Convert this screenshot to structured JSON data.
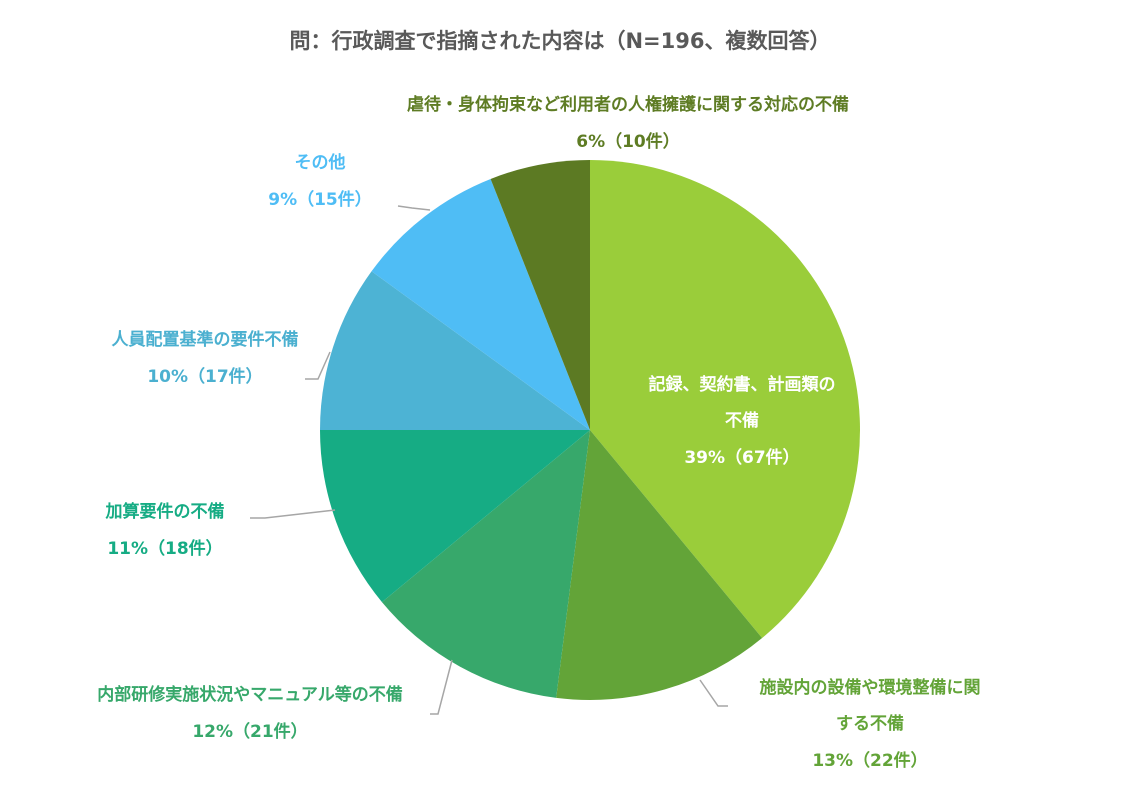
{
  "chart_data": {
    "type": "pie",
    "title": "問：行政調査で指摘された内容は（N=196、複数回答）",
    "categories": [
      "記録、契約書、計画類の不備",
      "施設内の設備や環境整備に関する不備",
      "内部研修実施状況やマニュアル等の不備",
      "加算要件の不備",
      "人員配置基準の要件不備",
      "その他",
      "虐待・身体拘束など利用者の人権擁護に関する対応の不備"
    ],
    "values": [
      39,
      13,
      12,
      11,
      10,
      9,
      6
    ],
    "value_labels": [
      "39%（67件）",
      "13%（22件）",
      "12%（21件）",
      "11%（18件）",
      "10%（17件）",
      "9%（15件）",
      "6%（10件）"
    ],
    "colors": [
      "#9acd3a",
      "#63a438",
      "#37a86b",
      "#16ac84",
      "#4db3d4",
      "#4fbdf5",
      "#5c7a23"
    ]
  }
}
